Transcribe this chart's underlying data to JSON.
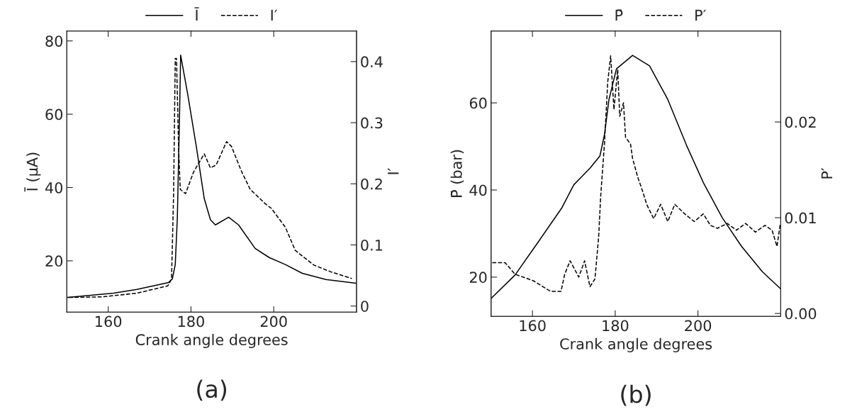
{
  "chart_data": [
    {
      "type": "line",
      "xlabel": "Crank angle degrees",
      "ylabel": "Ī (μA)",
      "y2label": "I′",
      "legend": "top",
      "marker": "none",
      "grid": false,
      "xlim": [
        150,
        220
      ],
      "xticks": [
        160,
        180,
        200
      ],
      "ylim": [
        6,
        82.7
      ],
      "yticks": [
        20,
        40,
        60,
        80
      ],
      "y2lim": [
        -0.01,
        0.45
      ],
      "y2ticks": [
        0,
        0.1,
        0.2,
        0.3,
        0.4
      ],
      "annotations": [
        "(a)"
      ],
      "series": [
        {
          "name": "Ī",
          "color": "#000000",
          "line_style": "solid",
          "x": [
            150.2,
            161.3,
            166.9,
            174.6,
            175.5,
            176.2,
            176.7,
            177.2,
            177.5,
            179.2,
            181.3,
            183.2,
            184.7,
            185.9,
            189.1,
            191.5,
            195.5,
            198.9,
            202.8,
            206.9,
            212.6,
            219.9
          ],
          "values": [
            10.0,
            11.2,
            12.2,
            14.1,
            15.1,
            19,
            31.7,
            57.7,
            76.1,
            65.5,
            51.1,
            37,
            31.2,
            29.8,
            31.9,
            29.8,
            23.4,
            20.9,
            19,
            16.6,
            14.9,
            13.9
          ]
        },
        {
          "name": "I′",
          "color": "#000000",
          "line_style": "dashed",
          "axis": "y2",
          "x": [
            150.5,
            158.4,
            166.9,
            174.4,
            175.3,
            175.8,
            176.2,
            176.5,
            177,
            177.4,
            178.7,
            180.6,
            183.2,
            184.7,
            186.1,
            188.6,
            189.8,
            192.1,
            194.3,
            198.0,
            199.4,
            202.8,
            205.2,
            209.7,
            213.8,
            218.9
          ],
          "values": [
            0.014,
            0.015,
            0.021,
            0.033,
            0.044,
            0.184,
            0.405,
            0.405,
            0.26,
            0.191,
            0.184,
            0.219,
            0.249,
            0.226,
            0.231,
            0.269,
            0.261,
            0.222,
            0.191,
            0.167,
            0.16,
            0.129,
            0.091,
            0.067,
            0.056,
            0.045
          ]
        }
      ]
    },
    {
      "type": "line",
      "xlabel": "Crank angle degrees",
      "ylabel": "P̄ (bar)",
      "y2label": "P′",
      "legend": "top",
      "marker": "none",
      "grid": false,
      "xlim": [
        150,
        220
      ],
      "xticks": [
        160,
        180,
        200
      ],
      "ylim": [
        11,
        76.5
      ],
      "yticks": [
        20,
        40,
        60
      ],
      "y2lim": [
        -0.0003,
        0.0295
      ],
      "y2ticks": [
        {
          "value": 0,
          "label": "0.00"
        },
        0.01,
        0.02
      ],
      "annotations": [
        "(b)"
      ],
      "series": [
        {
          "name": "P̄",
          "color": "#000000",
          "line_style": "solid",
          "x": [
            150,
            155.8,
            161.5,
            167.1,
            170,
            173.9,
            176.3,
            177.4,
            178.5,
            180.3,
            184.2,
            188.3,
            192.7,
            197.4,
            201.3,
            205.9,
            210.5,
            215.6,
            220
          ],
          "values": [
            15.1,
            20.5,
            28.2,
            35.9,
            41.2,
            45,
            47.8,
            52.7,
            60.8,
            67.8,
            70.9,
            68.5,
            60.8,
            49.9,
            41.7,
            33.6,
            27.1,
            21.2,
            17.3
          ]
        },
        {
          "name": "P′",
          "color": "#000000",
          "line_style": "dashed",
          "axis": "y2",
          "x": [
            150.3,
            153.4,
            155.8,
            160.3,
            164.4,
            166.9,
            167.8,
            169.1,
            171.2,
            172.6,
            173.9,
            175.1,
            176,
            176.5,
            177.4,
            178.2,
            178.9,
            179.7,
            180.6,
            181.1,
            182,
            182.5,
            183.7,
            184.2,
            185.4,
            186.6,
            187.6,
            189.3,
            191,
            192.7,
            194.4,
            196.8,
            199.1,
            201.3,
            203,
            204.7,
            207.1,
            209.3,
            211.5,
            213.9,
            216.2,
            217.9,
            219.1,
            219.9
          ],
          "values": [
            0.0053,
            0.0053,
            0.0041,
            0.0034,
            0.0023,
            0.0023,
            0.0041,
            0.0055,
            0.0038,
            0.0055,
            0.0028,
            0.0036,
            0.008,
            0.0123,
            0.0177,
            0.0242,
            0.0269,
            0.0213,
            0.0255,
            0.0206,
            0.022,
            0.0184,
            0.0177,
            0.0162,
            0.0143,
            0.0128,
            0.0114,
            0.0099,
            0.0114,
            0.0096,
            0.0114,
            0.0104,
            0.0096,
            0.0104,
            0.0092,
            0.0089,
            0.0094,
            0.0087,
            0.0094,
            0.0085,
            0.0092,
            0.0087,
            0.007,
            0.0094
          ]
        }
      ]
    }
  ]
}
